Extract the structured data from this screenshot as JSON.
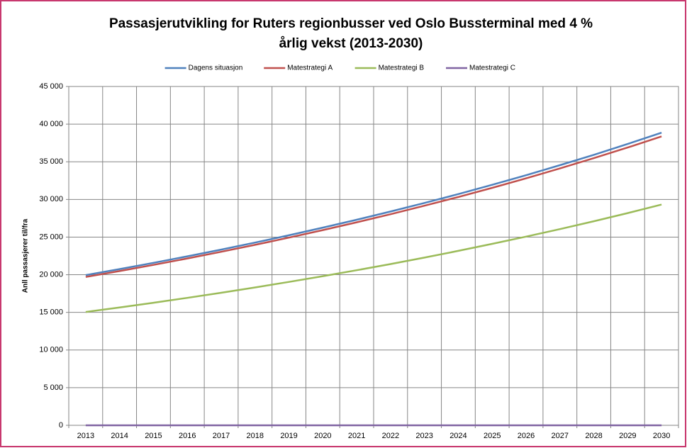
{
  "chart_data": {
    "type": "line",
    "title": [
      "Passasjerutvikling for Ruters regionbusser ved Oslo Bussterminal med 4 %",
      "årlig vekst (2013-2030)"
    ],
    "y_label": "Anll passasjerer til/fra",
    "categories": [
      "2013",
      "2014",
      "2015",
      "2016",
      "2017",
      "2018",
      "2019",
      "2020",
      "2021",
      "2022",
      "2023",
      "2024",
      "2025",
      "2026",
      "2027",
      "2028",
      "2029",
      "2030"
    ],
    "series": [
      {
        "name": "Dagens situasjon",
        "color": "#4f81bd",
        "values": [
          19950,
          20748,
          21578,
          22441,
          23339,
          24272,
          25243,
          26253,
          27303,
          28395,
          29531,
          30712,
          31941,
          33218,
          34547,
          35929,
          37366,
          38861
        ]
      },
      {
        "name": "Matestrategi A",
        "color": "#c0504d",
        "values": [
          19700,
          20488,
          21308,
          22160,
          23046,
          23968,
          24927,
          25924,
          26961,
          28039,
          29161,
          30327,
          31540,
          32802,
          34114,
          35479,
          36898,
          38374
        ]
      },
      {
        "name": "Matestrategi B",
        "color": "#9bbb59",
        "values": [
          15050,
          15652,
          16278,
          16929,
          17606,
          18311,
          19043,
          19805,
          20597,
          21421,
          22278,
          23169,
          24096,
          25059,
          26062,
          27104,
          28188,
          29316
        ]
      },
      {
        "name": "Matestrategi C",
        "color": "#8064a2",
        "values": [
          0,
          0,
          0,
          0,
          0,
          0,
          0,
          0,
          0,
          0,
          0,
          0,
          0,
          0,
          0,
          0,
          0,
          0
        ]
      }
    ],
    "ylim": [
      0,
      45000
    ],
    "yticks": [
      0,
      {
        "value": 5000,
        "label": "5 000"
      },
      {
        "value": 10000,
        "label": "10 000"
      },
      {
        "value": 15000,
        "label": "15 000"
      },
      {
        "value": 20000,
        "label": "20 000"
      },
      {
        "value": 25000,
        "label": "25 000"
      },
      {
        "value": 30000,
        "label": "30 000"
      },
      {
        "value": 35000,
        "label": "35 000"
      },
      {
        "value": 40000,
        "label": "40 000"
      },
      {
        "value": 45000,
        "label": "45 000"
      }
    ],
    "grid": true,
    "legend": "top"
  }
}
